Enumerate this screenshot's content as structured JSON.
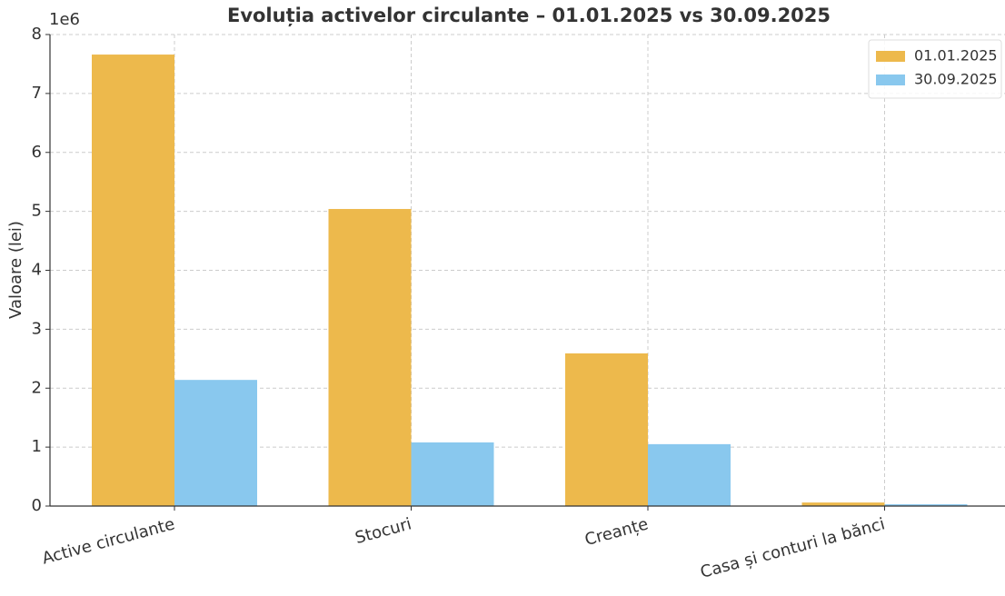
{
  "chart_data": {
    "type": "bar",
    "title": "Evoluția activelor circulante – 01.01.2025 vs 30.09.2025",
    "y_label": "Valoare (lei)",
    "y_offset_label": "1e6",
    "categories": [
      "Active circulante",
      "Stocuri",
      "Creanțe",
      "Casa și conturi la bănci"
    ],
    "series": [
      {
        "name": "01.01.2025",
        "color": "#edb94c",
        "values": [
          7.66,
          5.04,
          2.59,
          0.06
        ]
      },
      {
        "name": "30.09.2025",
        "color": "#89c8ee",
        "values": [
          2.14,
          1.08,
          1.05,
          0.03
        ]
      }
    ],
    "ylim": [
      0,
      8
    ],
    "yticks": [
      0,
      1,
      2,
      3,
      4,
      5,
      6,
      7,
      8
    ],
    "grid": true,
    "legend": "upper right"
  }
}
